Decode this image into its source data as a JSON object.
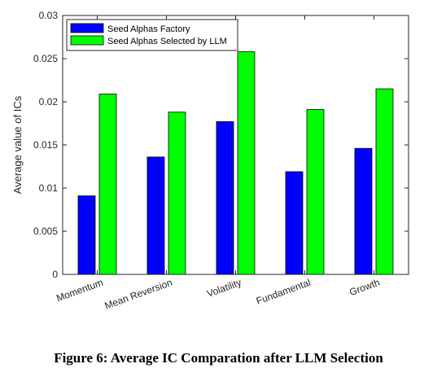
{
  "caption": "Figure 6: Average IC Comparation after LLM Selection",
  "chart_data": {
    "type": "bar",
    "categories": [
      "Momentum",
      "Mean Reversion",
      "Volatility",
      "Fundamental",
      "Growth"
    ],
    "series": [
      {
        "name": "Seed Alphas Factory",
        "color": "#0000ff",
        "values": [
          0.0091,
          0.0136,
          0.0177,
          0.0119,
          0.0146
        ]
      },
      {
        "name": "Seed Alphas Selected by LLM",
        "color": "#00ff00",
        "values": [
          0.0209,
          0.0188,
          0.0258,
          0.0191,
          0.0215
        ]
      }
    ],
    "title": "",
    "xlabel": "",
    "ylabel": "Average value of ICs",
    "ylim": [
      0,
      0.03
    ],
    "yticks": [
      0,
      0.005,
      0.01,
      0.015,
      0.02,
      0.025,
      0.03
    ],
    "ytick_labels": [
      "0",
      "0.005",
      "0.01",
      "0.015",
      "0.02",
      "0.025",
      "0.03"
    ],
    "grid": false,
    "legend_position": "top-left"
  }
}
